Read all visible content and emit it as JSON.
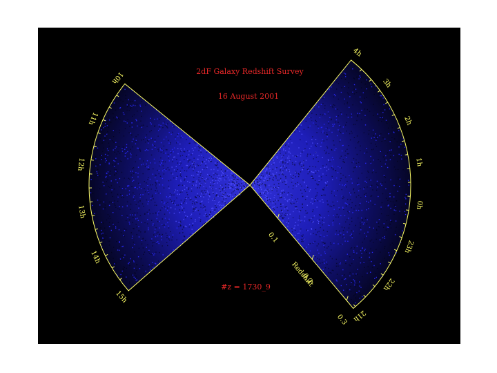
{
  "title": "2dF Galaxy Redshift Survey",
  "date": "16 August 2001",
  "count": "#z = 1730_9",
  "redshift_axis": {
    "label": "Redshift",
    "ticks": [
      "0.1",
      "0.2",
      "0.3"
    ]
  },
  "ra_left": [
    "10h",
    "11h",
    "12h",
    "13h",
    "14h",
    "15h"
  ],
  "ra_right": [
    "4h",
    "3h",
    "2h",
    "1h",
    "0h",
    "23h",
    "22h",
    "21h"
  ]
}
